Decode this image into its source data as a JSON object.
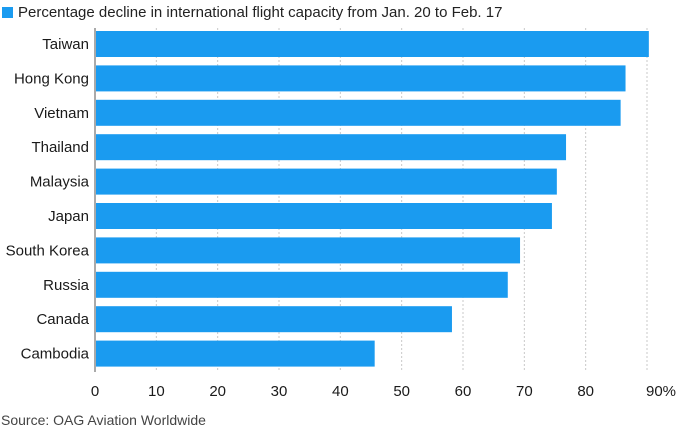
{
  "chart_data": {
    "type": "bar",
    "orientation": "horizontal",
    "legend": "Percentage decline in international flight capacity from Jan. 20 to Feb. 17",
    "legend_placement": "top-left",
    "categories": [
      "Taiwan",
      "Hong Kong",
      "Vietnam",
      "Thailand",
      "Malaysia",
      "Japan",
      "South Korea",
      "Russia",
      "Canada",
      "Cambodia"
    ],
    "values": [
      90.3,
      86.5,
      85.7,
      76.8,
      75.3,
      74.5,
      69.3,
      67.3,
      58.2,
      45.6
    ],
    "xlim": [
      0,
      90
    ],
    "xticks": [
      "0",
      "10",
      "20",
      "30",
      "40",
      "50",
      "60",
      "70",
      "80",
      "90%"
    ],
    "grid": "vertical",
    "bar_color": "#1a9bf0",
    "source": "Source: OAG Aviation Worldwide"
  }
}
